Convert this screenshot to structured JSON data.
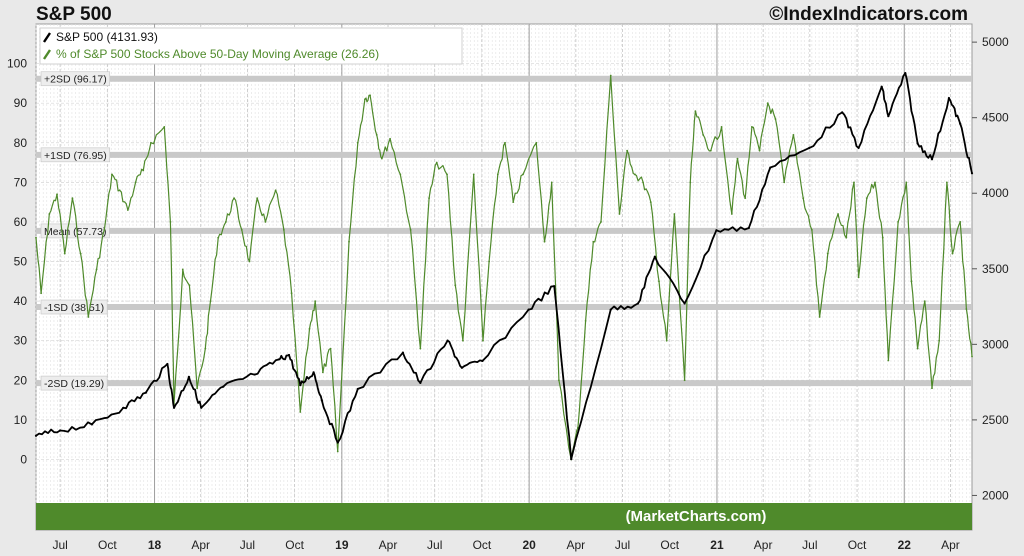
{
  "header": {
    "title": "S&P 500",
    "source": "©IndexIndicators.com"
  },
  "watermark": "(MarketCharts.com)",
  "colors": {
    "sp500": "#000000",
    "breadth": "#4f8a2b",
    "band": "#4f8a2b",
    "sd_line": "#c9c9c9"
  },
  "chart_data": {
    "type": "line",
    "x_axis": {
      "start": "2017-05-15",
      "end": "2022-05-13",
      "tick_labels": [
        {
          "date": "2017-07-01",
          "label": "Jul"
        },
        {
          "date": "2017-10-01",
          "label": "Oct"
        },
        {
          "date": "2018-01-01",
          "label": "18"
        },
        {
          "date": "2018-04-01",
          "label": "Apr"
        },
        {
          "date": "2018-07-01",
          "label": "Jul"
        },
        {
          "date": "2018-10-01",
          "label": "Oct"
        },
        {
          "date": "2019-01-01",
          "label": "19"
        },
        {
          "date": "2019-04-01",
          "label": "Apr"
        },
        {
          "date": "2019-07-01",
          "label": "Jul"
        },
        {
          "date": "2019-10-01",
          "label": "Oct"
        },
        {
          "date": "2020-01-01",
          "label": "20"
        },
        {
          "date": "2020-04-01",
          "label": "Apr"
        },
        {
          "date": "2020-07-01",
          "label": "Jul"
        },
        {
          "date": "2020-10-01",
          "label": "Oct"
        },
        {
          "date": "2021-01-01",
          "label": "21"
        },
        {
          "date": "2021-04-01",
          "label": "Apr"
        },
        {
          "date": "2021-07-01",
          "label": "Jul"
        },
        {
          "date": "2021-10-01",
          "label": "Oct"
        },
        {
          "date": "2022-01-01",
          "label": "22"
        },
        {
          "date": "2022-04-01",
          "label": "Apr"
        }
      ]
    },
    "left_axis": {
      "range": [
        -11,
        110
      ],
      "ticks": [
        0,
        10,
        20,
        30,
        40,
        50,
        60,
        70,
        80,
        90,
        100
      ]
    },
    "right_axis": {
      "range": [
        1950,
        5120
      ],
      "ticks": [
        2000,
        2500,
        3000,
        3500,
        4000,
        4500,
        5000
      ]
    },
    "grid": true,
    "legend_placement": "top-left",
    "reference_lines": [
      {
        "label": "+2SD (96.17)",
        "value": 96.17
      },
      {
        "label": "+1SD (76.95)",
        "value": 76.95
      },
      {
        "label": "Mean (57.73)",
        "value": 57.73
      },
      {
        "label": "-1SD (38.51)",
        "value": 38.51
      },
      {
        "label": "-2SD (19.29)",
        "value": 19.29
      }
    ],
    "series": [
      {
        "name": "S&P 500 (4131.93)",
        "axis": "right",
        "points": [
          [
            "2017-05-15",
            2395
          ],
          [
            "2017-07-01",
            2430
          ],
          [
            "2017-09-01",
            2470
          ],
          [
            "2017-11-01",
            2580
          ],
          [
            "2017-12-15",
            2680
          ],
          [
            "2018-01-26",
            2870
          ],
          [
            "2018-02-08",
            2580
          ],
          [
            "2018-03-09",
            2785
          ],
          [
            "2018-04-02",
            2580
          ],
          [
            "2018-05-15",
            2720
          ],
          [
            "2018-07-15",
            2800
          ],
          [
            "2018-08-31",
            2900
          ],
          [
            "2018-09-20",
            2930
          ],
          [
            "2018-10-12",
            2730
          ],
          [
            "2018-11-07",
            2815
          ],
          [
            "2018-11-23",
            2630
          ],
          [
            "2018-12-24",
            2350
          ],
          [
            "2019-02-01",
            2705
          ],
          [
            "2019-04-30",
            2945
          ],
          [
            "2019-06-03",
            2745
          ],
          [
            "2019-07-26",
            3025
          ],
          [
            "2019-08-23",
            2845
          ],
          [
            "2019-10-02",
            2890
          ],
          [
            "2019-12-31",
            3230
          ],
          [
            "2020-02-19",
            3385
          ],
          [
            "2020-03-23",
            2240
          ],
          [
            "2020-06-08",
            3230
          ],
          [
            "2020-07-31",
            3270
          ],
          [
            "2020-09-02",
            3580
          ],
          [
            "2020-10-30",
            3270
          ],
          [
            "2020-12-31",
            3755
          ],
          [
            "2021-03-04",
            3770
          ],
          [
            "2021-04-15",
            4170
          ],
          [
            "2021-06-30",
            4300
          ],
          [
            "2021-09-02",
            4535
          ],
          [
            "2021-10-04",
            4300
          ],
          [
            "2021-11-18",
            4705
          ],
          [
            "2021-12-01",
            4510
          ],
          [
            "2022-01-03",
            4795
          ],
          [
            "2022-01-27",
            4330
          ],
          [
            "2022-02-24",
            4225
          ],
          [
            "2022-03-29",
            4630
          ],
          [
            "2022-04-20",
            4460
          ],
          [
            "2022-05-13",
            4132
          ]
        ]
      },
      {
        "name": "% of S&P 500 Stocks Above 50-Day Moving Average (26.26)",
        "axis": "left",
        "points": [
          [
            "2017-05-15",
            56
          ],
          [
            "2017-05-25",
            42
          ],
          [
            "2017-06-10",
            62
          ],
          [
            "2017-06-25",
            67
          ],
          [
            "2017-07-10",
            52
          ],
          [
            "2017-07-25",
            66
          ],
          [
            "2017-08-10",
            52
          ],
          [
            "2017-08-25",
            36
          ],
          [
            "2017-09-10",
            48
          ],
          [
            "2017-09-25",
            58
          ],
          [
            "2017-10-10",
            72
          ],
          [
            "2017-10-25",
            68
          ],
          [
            "2017-11-10",
            63
          ],
          [
            "2017-11-25",
            70
          ],
          [
            "2017-12-10",
            73
          ],
          [
            "2017-12-25",
            80
          ],
          [
            "2018-01-20",
            84
          ],
          [
            "2018-02-01",
            60
          ],
          [
            "2018-02-08",
            14
          ],
          [
            "2018-02-25",
            48
          ],
          [
            "2018-03-10",
            44
          ],
          [
            "2018-03-25",
            18
          ],
          [
            "2018-04-10",
            28
          ],
          [
            "2018-04-20",
            40
          ],
          [
            "2018-05-05",
            56
          ],
          [
            "2018-05-20",
            60
          ],
          [
            "2018-06-05",
            66
          ],
          [
            "2018-06-20",
            58
          ],
          [
            "2018-07-05",
            50
          ],
          [
            "2018-07-20",
            66
          ],
          [
            "2018-08-05",
            60
          ],
          [
            "2018-08-25",
            68
          ],
          [
            "2018-09-10",
            58
          ],
          [
            "2018-09-25",
            42
          ],
          [
            "2018-10-12",
            12
          ],
          [
            "2018-10-30",
            33
          ],
          [
            "2018-11-10",
            40
          ],
          [
            "2018-11-25",
            22
          ],
          [
            "2018-12-10",
            28
          ],
          [
            "2018-12-24",
            2
          ],
          [
            "2019-01-15",
            55
          ],
          [
            "2019-02-01",
            80
          ],
          [
            "2019-02-15",
            91
          ],
          [
            "2019-02-25",
            92
          ],
          [
            "2019-03-10",
            82
          ],
          [
            "2019-03-20",
            76
          ],
          [
            "2019-04-05",
            81
          ],
          [
            "2019-04-25",
            72
          ],
          [
            "2019-05-15",
            58
          ],
          [
            "2019-06-03",
            28
          ],
          [
            "2019-06-20",
            66
          ],
          [
            "2019-07-05",
            75
          ],
          [
            "2019-07-25",
            72
          ],
          [
            "2019-08-10",
            44
          ],
          [
            "2019-08-25",
            30
          ],
          [
            "2019-09-15",
            72
          ],
          [
            "2019-10-03",
            30
          ],
          [
            "2019-10-15",
            50
          ],
          [
            "2019-11-01",
            72
          ],
          [
            "2019-11-15",
            80
          ],
          [
            "2019-12-01",
            65
          ],
          [
            "2019-12-20",
            72
          ],
          [
            "2020-01-15",
            80
          ],
          [
            "2020-01-31",
            55
          ],
          [
            "2020-02-14",
            70
          ],
          [
            "2020-02-28",
            20
          ],
          [
            "2020-03-23",
            0
          ],
          [
            "2020-04-05",
            8
          ],
          [
            "2020-04-20",
            35
          ],
          [
            "2020-05-05",
            55
          ],
          [
            "2020-05-20",
            60
          ],
          [
            "2020-06-08",
            97
          ],
          [
            "2020-06-25",
            62
          ],
          [
            "2020-07-10",
            78
          ],
          [
            "2020-07-25",
            72
          ],
          [
            "2020-08-10",
            70
          ],
          [
            "2020-08-25",
            65
          ],
          [
            "2020-09-10",
            45
          ],
          [
            "2020-09-25",
            30
          ],
          [
            "2020-10-10",
            62
          ],
          [
            "2020-10-30",
            20
          ],
          [
            "2020-11-10",
            70
          ],
          [
            "2020-11-20",
            88
          ],
          [
            "2020-12-05",
            82
          ],
          [
            "2020-12-20",
            78
          ],
          [
            "2021-01-10",
            84
          ],
          [
            "2021-01-30",
            62
          ],
          [
            "2021-02-10",
            76
          ],
          [
            "2021-02-25",
            66
          ],
          [
            "2021-03-10",
            84
          ],
          [
            "2021-03-25",
            78
          ],
          [
            "2021-04-10",
            90
          ],
          [
            "2021-04-25",
            86
          ],
          [
            "2021-05-12",
            70
          ],
          [
            "2021-05-30",
            82
          ],
          [
            "2021-06-18",
            66
          ],
          [
            "2021-07-05",
            58
          ],
          [
            "2021-07-20",
            36
          ],
          [
            "2021-08-05",
            52
          ],
          [
            "2021-08-25",
            62
          ],
          [
            "2021-09-10",
            56
          ],
          [
            "2021-09-25",
            70
          ],
          [
            "2021-10-04",
            46
          ],
          [
            "2021-10-20",
            66
          ],
          [
            "2021-11-05",
            70
          ],
          [
            "2021-11-20",
            56
          ],
          [
            "2021-12-01",
            25
          ],
          [
            "2021-12-20",
            60
          ],
          [
            "2022-01-05",
            70
          ],
          [
            "2022-01-15",
            45
          ],
          [
            "2022-01-27",
            28
          ],
          [
            "2022-02-10",
            40
          ],
          [
            "2022-02-24",
            18
          ],
          [
            "2022-03-10",
            30
          ],
          [
            "2022-03-25",
            70
          ],
          [
            "2022-04-05",
            52
          ],
          [
            "2022-04-20",
            60
          ],
          [
            "2022-05-02",
            38
          ],
          [
            "2022-05-13",
            26
          ]
        ]
      }
    ]
  }
}
